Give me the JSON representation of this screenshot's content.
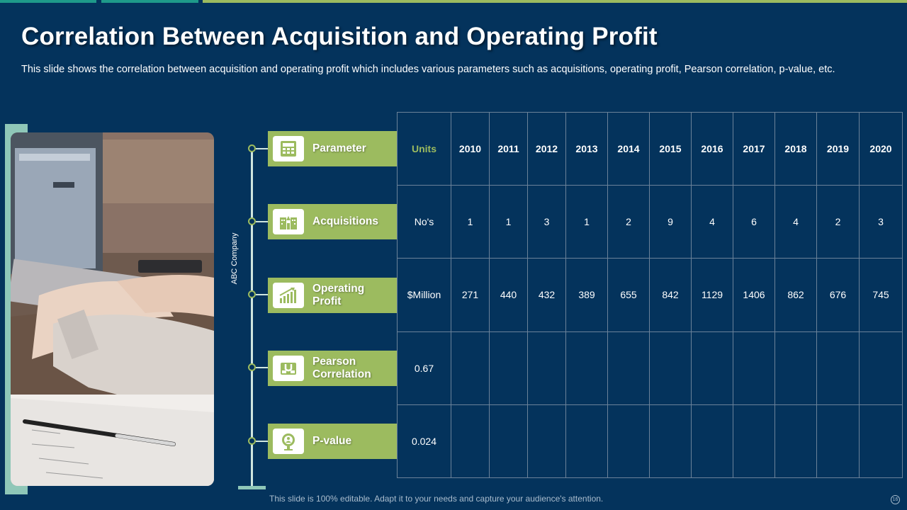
{
  "title": "Correlation Between Acquisition and Operating Profit",
  "subtitle": "This slide shows the correlation between acquisition and operating profit which includes various parameters such as acquisitions, operating profit, Pearson correlation, p-value, etc.",
  "company_label": "ABC Company",
  "parameters": [
    {
      "label": "Parameter",
      "icon": "calculator-icon"
    },
    {
      "label": "Acquisitions",
      "icon": "buildings-icon"
    },
    {
      "label": "Operating Profit",
      "icon": "growth-chart-icon"
    },
    {
      "label": "Pearson Correlation",
      "icon": "magnet-icon"
    },
    {
      "label": "P-value",
      "icon": "magnifier-user-icon"
    }
  ],
  "table": {
    "units_header": "Units",
    "years": [
      "2010",
      "2011",
      "2012",
      "2013",
      "2014",
      "2015",
      "2016",
      "2017",
      "2018",
      "2019",
      "2020"
    ],
    "rows": [
      {
        "unit": "No's",
        "values": [
          "1",
          "1",
          "3",
          "1",
          "2",
          "9",
          "4",
          "6",
          "4",
          "2",
          "3"
        ]
      },
      {
        "unit": "$Million",
        "values": [
          "271",
          "440",
          "432",
          "389",
          "655",
          "842",
          "1129",
          "1406",
          "862",
          "676",
          "745"
        ]
      },
      {
        "unit": "0.67",
        "values": [
          "",
          "",
          "",
          "",
          "",
          "",
          "",
          "",
          "",
          "",
          ""
        ]
      },
      {
        "unit": "0.024",
        "values": [
          "",
          "",
          "",
          "",
          "",
          "",
          "",
          "",
          "",
          "",
          ""
        ]
      }
    ]
  },
  "footer": "This slide is 100% editable. Adapt it to your needs and capture your audience's attention.",
  "page_number": "16",
  "colors": {
    "background": "#04335c",
    "accent_green": "#9cbb5f",
    "accent_teal": "#1e9a8a"
  }
}
